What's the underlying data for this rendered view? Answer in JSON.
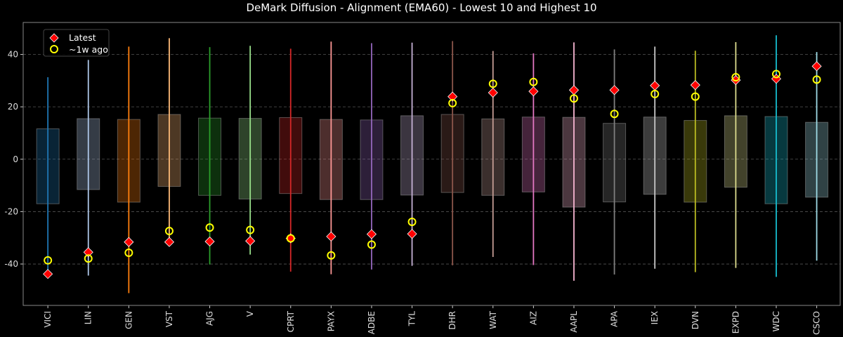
{
  "chart_data": {
    "type": "box-range",
    "title": "DeMark Diffusion - Alignment (EMA60) - Lowest 10 and Highest 10",
    "xlabel": "",
    "ylabel": "",
    "ylim": [
      -55.8,
      52.2
    ],
    "yticks": [
      -40,
      -20,
      0,
      20,
      40
    ],
    "grid": true,
    "legend_position": "top-left",
    "legend": [
      {
        "label": "Latest",
        "marker": "diamond",
        "color": "#ff0000"
      },
      {
        "label": "~1w ago",
        "marker": "circle-open",
        "color": "#ffff00"
      }
    ],
    "categories": [
      "VICI",
      "LIN",
      "GEN",
      "VST",
      "AJG",
      "V",
      "CPRT",
      "PAYX",
      "ADBE",
      "TYL",
      "DHR",
      "WAT",
      "AIZ",
      "AAPL",
      "APA",
      "IEX",
      "DVN",
      "EXPD",
      "WDC",
      "CSCO"
    ],
    "colors": [
      "#1f77b4",
      "#aec7e8",
      "#ff7f0e",
      "#ffbb78",
      "#2ca02c",
      "#98df8a",
      "#d62728",
      "#ff9896",
      "#9467bd",
      "#c5b0d5",
      "#8c564b",
      "#c49c94",
      "#e377c2",
      "#f7b6d2",
      "#7f7f7f",
      "#c7c7c7",
      "#bcbd22",
      "#dbdb8d",
      "#17becf",
      "#9edae5"
    ],
    "min": [
      -43.0,
      -44.4,
      -51.1,
      -31.6,
      -40.2,
      -36.4,
      -42.9,
      -43.9,
      -42.1,
      -40.7,
      -40.5,
      -37.3,
      -40.4,
      -46.4,
      -44.0,
      -41.8,
      -43.1,
      -41.5,
      -44.9,
      -38.7
    ],
    "max": [
      31.3,
      37.9,
      43.0,
      46.2,
      42.8,
      43.3,
      42.2,
      44.9,
      44.3,
      44.5,
      45.1,
      41.3,
      40.4,
      44.6,
      41.9,
      43.0,
      41.4,
      44.7,
      47.3,
      40.9
    ],
    "q1": [
      -17.0,
      -11.6,
      -16.4,
      -10.4,
      -13.8,
      -15.2,
      -13.1,
      -15.4,
      -15.4,
      -13.7,
      -12.7,
      -13.8,
      -12.5,
      -18.3,
      -16.3,
      -13.4,
      -16.4,
      -10.7,
      -17.0,
      -14.5
    ],
    "q3": [
      11.6,
      15.5,
      15.2,
      17.1,
      15.7,
      15.6,
      15.9,
      15.2,
      15.0,
      16.6,
      17.1,
      15.4,
      16.1,
      16.0,
      13.7,
      16.1,
      14.8,
      16.6,
      16.3,
      14.1
    ],
    "latest": [
      -43.8,
      -35.5,
      -31.6,
      -31.6,
      -31.4,
      -31.2,
      -30.2,
      -29.5,
      -28.6,
      -28.5,
      23.9,
      25.4,
      25.9,
      26.4,
      26.4,
      28.1,
      28.3,
      30.2,
      30.7,
      35.5
    ],
    "week_ago": [
      -38.6,
      -37.9,
      -35.7,
      -27.4,
      -26.1,
      -27.0,
      -30.2,
      -36.7,
      -32.6,
      -23.9,
      21.4,
      28.8,
      29.5,
      23.2,
      17.3,
      24.9,
      23.9,
      31.3,
      32.5,
      30.4
    ]
  }
}
